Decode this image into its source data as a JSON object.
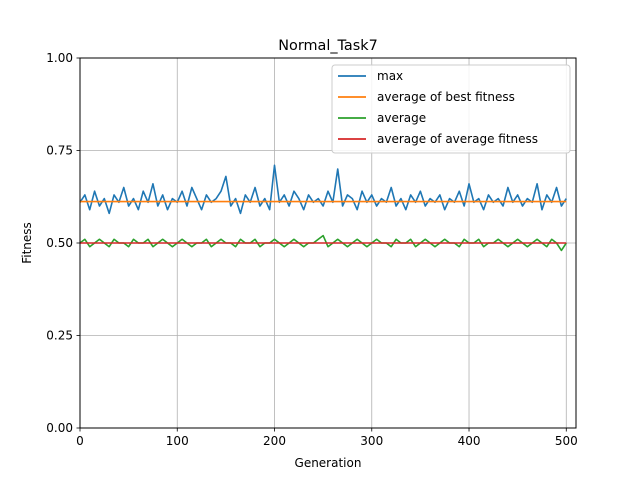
{
  "chart_data": {
    "type": "line",
    "title": "Normal_Task7",
    "xlabel": "Generation",
    "ylabel": "Fitness",
    "xlim": [
      0,
      510
    ],
    "ylim": [
      0.0,
      1.0
    ],
    "xticks": [
      0,
      100,
      200,
      300,
      400,
      500
    ],
    "yticks": [
      0.0,
      0.25,
      0.5,
      0.75,
      1.0
    ],
    "xtick_labels": [
      "0",
      "100",
      "200",
      "300",
      "400",
      "500"
    ],
    "ytick_labels": [
      "0.00",
      "0.25",
      "0.50",
      "0.75",
      "1.00"
    ],
    "grid": true,
    "legend_position": "top-right",
    "series": [
      {
        "name": "max",
        "color": "#1f77b4",
        "x_start": 0,
        "x_step": 5,
        "values": [
          0.61,
          0.63,
          0.59,
          0.64,
          0.6,
          0.62,
          0.58,
          0.63,
          0.61,
          0.65,
          0.6,
          0.62,
          0.59,
          0.64,
          0.61,
          0.66,
          0.6,
          0.63,
          0.59,
          0.62,
          0.61,
          0.64,
          0.6,
          0.65,
          0.62,
          0.59,
          0.63,
          0.61,
          0.62,
          0.64,
          0.68,
          0.6,
          0.62,
          0.58,
          0.63,
          0.61,
          0.65,
          0.6,
          0.62,
          0.59,
          0.71,
          0.61,
          0.63,
          0.6,
          0.64,
          0.62,
          0.59,
          0.63,
          0.61,
          0.62,
          0.6,
          0.64,
          0.61,
          0.7,
          0.6,
          0.63,
          0.62,
          0.59,
          0.64,
          0.61,
          0.63,
          0.6,
          0.62,
          0.61,
          0.65,
          0.6,
          0.62,
          0.59,
          0.63,
          0.61,
          0.64,
          0.6,
          0.62,
          0.61,
          0.63,
          0.59,
          0.62,
          0.61,
          0.64,
          0.6,
          0.66,
          0.61,
          0.62,
          0.59,
          0.63,
          0.61,
          0.62,
          0.6,
          0.65,
          0.61,
          0.63,
          0.6,
          0.62,
          0.61,
          0.66,
          0.59,
          0.63,
          0.61,
          0.65,
          0.6,
          0.62
        ]
      },
      {
        "name": "average of best fitness",
        "color": "#ff7f0e",
        "x": [
          0,
          500
        ],
        "values": [
          0.612,
          0.612
        ]
      },
      {
        "name": "average",
        "color": "#2ca02c",
        "x_start": 0,
        "x_step": 5,
        "values": [
          0.5,
          0.51,
          0.49,
          0.5,
          0.51,
          0.5,
          0.49,
          0.51,
          0.5,
          0.5,
          0.49,
          0.51,
          0.5,
          0.5,
          0.51,
          0.49,
          0.5,
          0.51,
          0.5,
          0.49,
          0.5,
          0.51,
          0.5,
          0.49,
          0.5,
          0.5,
          0.51,
          0.49,
          0.5,
          0.51,
          0.5,
          0.5,
          0.49,
          0.51,
          0.5,
          0.5,
          0.51,
          0.49,
          0.5,
          0.5,
          0.51,
          0.5,
          0.49,
          0.5,
          0.51,
          0.5,
          0.49,
          0.5,
          0.5,
          0.51,
          0.52,
          0.49,
          0.5,
          0.51,
          0.5,
          0.49,
          0.5,
          0.51,
          0.5,
          0.49,
          0.5,
          0.51,
          0.5,
          0.5,
          0.49,
          0.51,
          0.5,
          0.5,
          0.51,
          0.49,
          0.5,
          0.51,
          0.5,
          0.49,
          0.5,
          0.51,
          0.5,
          0.5,
          0.49,
          0.51,
          0.5,
          0.5,
          0.51,
          0.49,
          0.5,
          0.5,
          0.51,
          0.5,
          0.49,
          0.5,
          0.51,
          0.5,
          0.49,
          0.5,
          0.51,
          0.5,
          0.49,
          0.51,
          0.5,
          0.48,
          0.5
        ]
      },
      {
        "name": "average of average fitness",
        "color": "#d62728",
        "x": [
          0,
          500
        ],
        "values": [
          0.5,
          0.5
        ]
      }
    ]
  }
}
